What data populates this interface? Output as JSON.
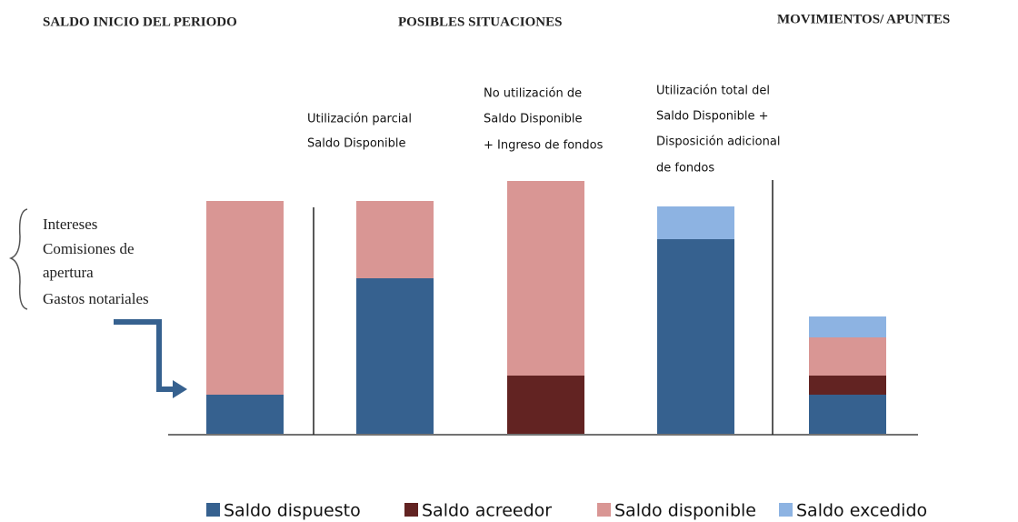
{
  "chart_data": {
    "type": "stacked_bar",
    "headers": [
      "SALDO INICIO DEL PERIODO",
      "POSIBLES SITUACIONES",
      "MOVIMIENTOS/ APUNTES"
    ],
    "side_note": [
      "Intereses",
      "Comisiones de",
      "apertura",
      "Gastos notariales"
    ],
    "annotations": [
      [],
      [
        "Utilización parcial",
        "Saldo Disponible"
      ],
      [
        "No utilización de",
        "Saldo Disponible",
        "+ Ingreso de fondos"
      ],
      [
        "Utilización total del",
        "Saldo Disponible +",
        "Disposición adicional",
        "de fondos"
      ],
      []
    ],
    "ylim": [
      0,
      280
    ],
    "series": [
      {
        "name": "Saldo dispuesto",
        "color": "#36618f",
        "values": [
          43,
          171,
          null,
          214,
          43
        ]
      },
      {
        "name": "Saldo acreedor",
        "color": "#622322",
        "values": [
          null,
          null,
          64,
          null,
          21
        ]
      },
      {
        "name": "Saldo disponible",
        "color": "#d99694",
        "values": [
          213,
          85,
          214,
          null,
          42
        ]
      },
      {
        "name": "Saldo excedido",
        "color": "#8db3e2",
        "values": [
          null,
          null,
          null,
          36,
          23
        ]
      }
    ]
  }
}
